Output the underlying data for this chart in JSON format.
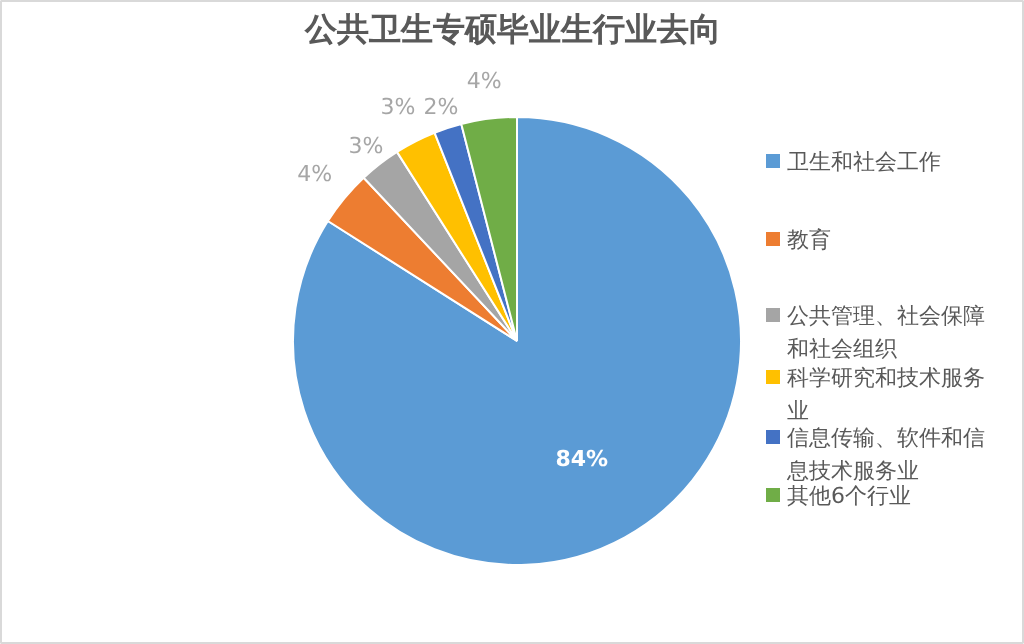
{
  "chart_data": {
    "type": "pie",
    "title": "公共卫生专硕毕业生行业去向",
    "categories": [
      "卫生和社会工作",
      "教育",
      "公共管理、社会保障和社会组织",
      "科学研究和技术服务业",
      "信息传输、软件和信息技术服务业",
      "其他6个行业"
    ],
    "values": [
      84,
      4,
      3,
      3,
      2,
      4
    ],
    "value_labels": [
      "84%",
      "4%",
      "3%",
      "3%",
      "2%",
      "4%"
    ],
    "colors": [
      "#5b9bd5",
      "#ed7d31",
      "#a5a5a5",
      "#ffc000",
      "#4472c4",
      "#70ad47"
    ],
    "legend": "right"
  }
}
